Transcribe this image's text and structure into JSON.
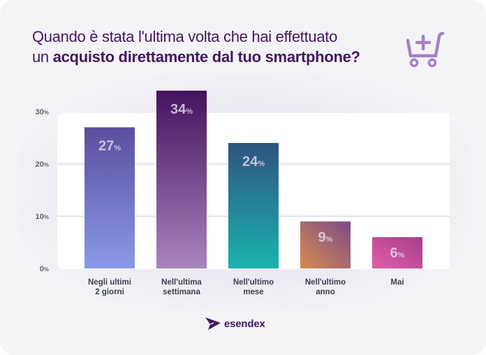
{
  "title": {
    "line1": "Quando è stata l'ultima volta che hai effettuato",
    "line2_prefix": "un ",
    "line2_bold": "acquisto direttamente dal tuo smartphone?"
  },
  "icon": "shopping-cart-add-icon",
  "brand": {
    "name": "esendex",
    "dot": ".",
    "color": "#44175e"
  },
  "colors": {
    "title": "#44175e",
    "accent_icon": "#a67fc4",
    "bar_gradients": [
      [
        "#5b4d9e",
        "#8a9ae8"
      ],
      [
        "#43135e",
        "#a985bd"
      ],
      [
        "#2e5480",
        "#1ab3ae"
      ],
      [
        "#7a4b8a",
        "#d88b4c"
      ],
      [
        "#a43e8c",
        "#e25ea6"
      ]
    ]
  },
  "chart_data": {
    "type": "bar",
    "title": "Quando è stata l'ultima volta che hai effettuato un acquisto direttamente dal tuo smartphone?",
    "categories": [
      "Negli ultimi 2 giorni",
      "Nell'ultima settimana",
      "Nell'ultimo mese",
      "Nell'ultimo anno",
      "Mai"
    ],
    "category_lines": [
      [
        "Negli ultimi",
        "2 giorni"
      ],
      [
        "Nell'ultima",
        "settimana"
      ],
      [
        "Nell'ultimo",
        "mese"
      ],
      [
        "Nell'ultimo",
        "anno"
      ],
      [
        "Mai"
      ]
    ],
    "values": [
      27,
      34,
      24,
      9,
      6
    ],
    "value_labels": [
      "27",
      "34",
      "24",
      "9",
      "6"
    ],
    "value_suffix": "%",
    "xlabel": "",
    "ylabel": "",
    "ylim": [
      0,
      30
    ],
    "yticks": [
      0,
      10,
      20,
      30
    ],
    "ytick_labels": [
      "0",
      "10",
      "20",
      "30"
    ],
    "ytick_suffix": "%",
    "grid": true,
    "legend": "none"
  }
}
